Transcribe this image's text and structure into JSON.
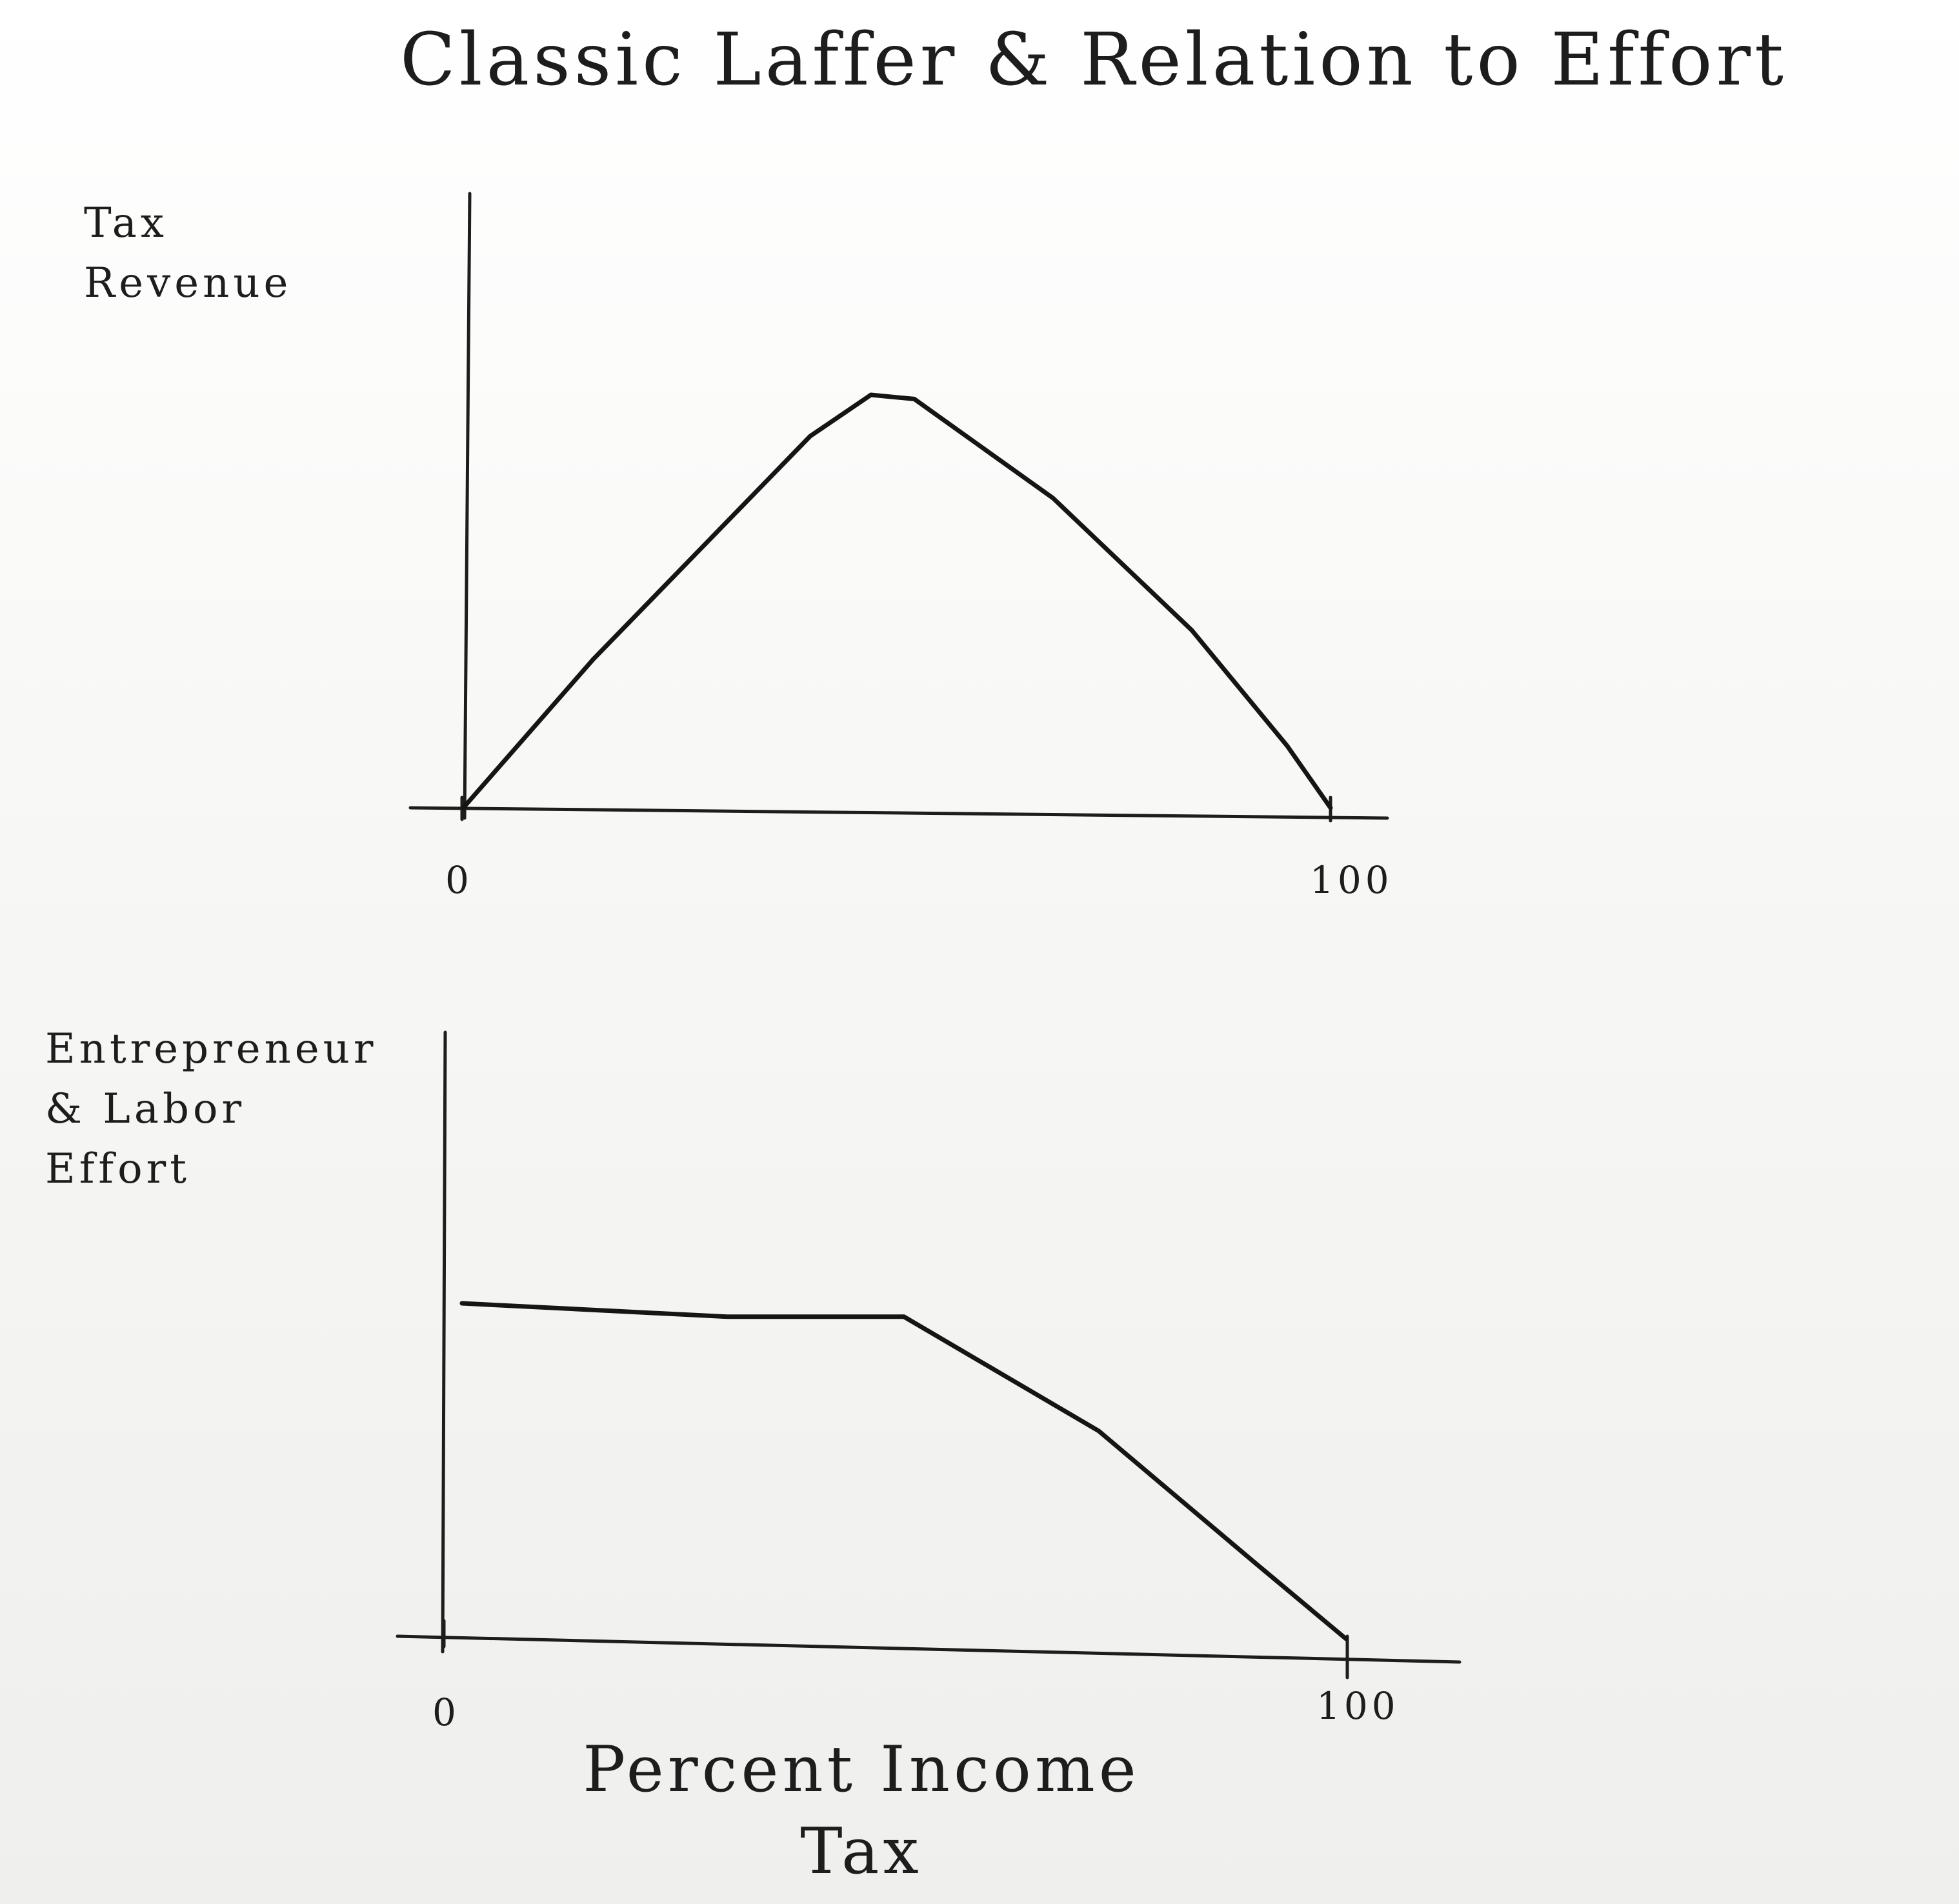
{
  "title": "Classic Laffer & Relation to Effort",
  "chart_data": [
    {
      "type": "line",
      "ylabel": [
        "Tax",
        "Revenue"
      ],
      "xlabel": "",
      "xticks": [
        "0",
        "100"
      ],
      "xlim": [
        0,
        100
      ],
      "ylim": [
        0,
        100
      ],
      "series": [
        {
          "values": [
            {
              "x": 0,
              "y": 0
            },
            {
              "x": 15,
              "y": 36
            },
            {
              "x": 40,
              "y": 90
            },
            {
              "x": 47,
              "y": 100
            },
            {
              "x": 52,
              "y": 99
            },
            {
              "x": 68,
              "y": 75
            },
            {
              "x": 84,
              "y": 43
            },
            {
              "x": 95,
              "y": 15
            },
            {
              "x": 100,
              "y": 0
            }
          ]
        }
      ]
    },
    {
      "type": "line",
      "ylabel": [
        "Entrepreneur",
        "& Labor",
        "Effort"
      ],
      "xlabel": [
        "Percent Income",
        "Tax"
      ],
      "xticks": [
        "0",
        "100"
      ],
      "xlim": [
        0,
        100
      ],
      "ylim": [
        0,
        100
      ],
      "series": [
        {
          "values": [
            {
              "x": 0,
              "y": 100
            },
            {
              "x": 30,
              "y": 96
            },
            {
              "x": 50,
              "y": 96
            },
            {
              "x": 72,
              "y": 62
            },
            {
              "x": 90,
              "y": 22
            },
            {
              "x": 100,
              "y": 0
            }
          ]
        }
      ]
    }
  ]
}
